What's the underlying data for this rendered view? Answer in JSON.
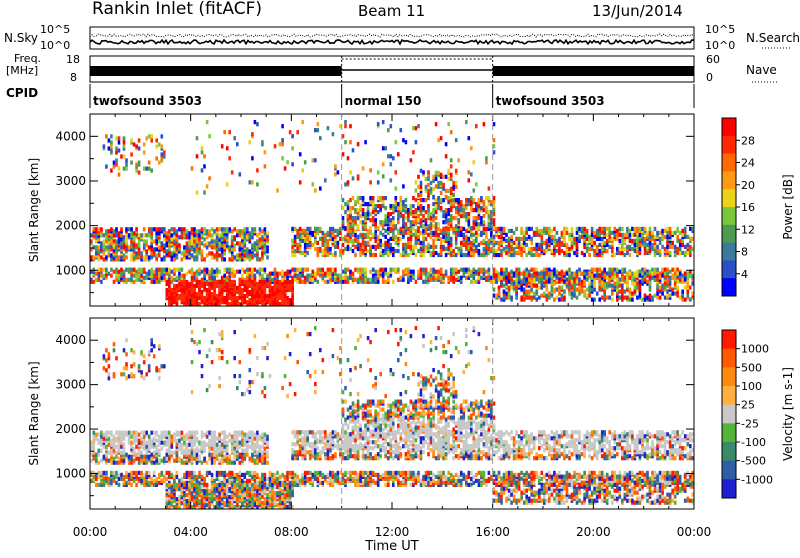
{
  "header": {
    "title": "Rankin Inlet (fitACF)",
    "beam": "Beam 11",
    "date": "13/Jun/2014"
  },
  "top_panels": {
    "nsky_label": "N.Sky",
    "nsky_ticks": [
      "10^5",
      "10^0"
    ],
    "nsearch_label": "N.Search",
    "freq_label": "Freq.",
    "freq_unit": "[MHz]",
    "freq_ticks": [
      "18",
      "8"
    ],
    "nave_label": "Nave",
    "nave_ticks": [
      "60",
      "0"
    ],
    "cpid_label": "CPID",
    "cpid_segments": [
      {
        "label": "twofsound 3503",
        "start_hour": 0,
        "end_hour": 10
      },
      {
        "label": "normal 150",
        "start_hour": 10,
        "end_hour": 16
      },
      {
        "label": "twofsound 3503",
        "start_hour": 16,
        "end_hour": 24
      }
    ]
  },
  "chart_data": [
    {
      "type": "heatmap",
      "name": "power-panel",
      "ylabel": "Slant Range [km]",
      "ylim": [
        200,
        4500
      ],
      "yticks": [
        1000,
        2000,
        3000,
        4000
      ],
      "xlim": [
        0,
        24
      ],
      "xticks": [
        "00:00",
        "04:00",
        "08:00",
        "12:00",
        "16:00",
        "20:00",
        "00:00"
      ],
      "colorbar": {
        "label": "Power [dB]",
        "ticks": [
          "4",
          "8",
          "12",
          "16",
          "20",
          "24",
          "28"
        ],
        "colors": [
          "#0000ff",
          "#2a4fc8",
          "#3a7a9a",
          "#4e9a4e",
          "#7cc83c",
          "#e8d21a",
          "#ff9a12",
          "#ff6a00",
          "#ff2a00",
          "#ff0000"
        ]
      }
    },
    {
      "type": "heatmap",
      "name": "velocity-panel",
      "ylabel": "Slant Range [km]",
      "ylim": [
        200,
        4500
      ],
      "yticks": [
        1000,
        2000,
        3000,
        4000
      ],
      "xlim": [
        0,
        24
      ],
      "xticks": [
        "00:00",
        "04:00",
        "08:00",
        "12:00",
        "16:00",
        "20:00",
        "00:00"
      ],
      "xlabel": "Time UT",
      "colorbar": {
        "label": "Velocity [m s-1]",
        "ticks": [
          "1000",
          "500",
          "100",
          "25",
          "-25",
          "-100",
          "-500",
          "-1000"
        ],
        "colors": [
          "#2020d0",
          "#2e5ea8",
          "#3a8a6a",
          "#54b43a",
          "#c8c8c8",
          "#ffb040",
          "#ff8a10",
          "#ff5a00",
          "#ff1a00"
        ]
      }
    }
  ]
}
